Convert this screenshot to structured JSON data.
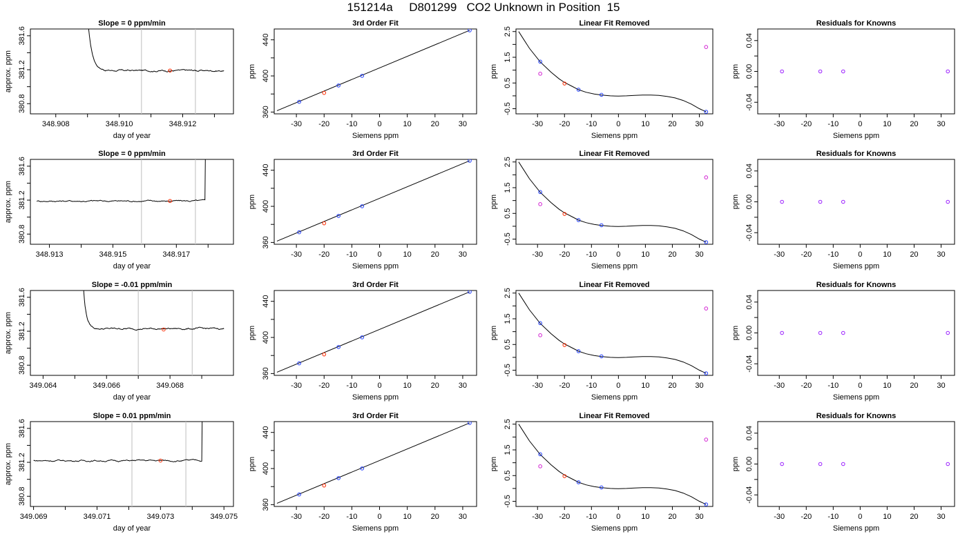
{
  "page": {
    "title": "151214a     D801299   CO2 Unknown in Position  15"
  },
  "colors": {
    "axis": "#000000",
    "line": "#000000",
    "ref_line": "#c8c8c8",
    "known": "#1f3cff",
    "sample": "#ff2a00",
    "known_purple": "#9b1fff",
    "unknown": "#d21fd2"
  },
  "chart_data": [
    {
      "type": "line",
      "row": 0,
      "title": "Slope =  0  ppm/min",
      "xlabel": "day of year",
      "ylabel": "approx. ppm",
      "xlim": [
        348.9072,
        348.9136
      ],
      "ylim": [
        380.68,
        381.68
      ],
      "x_ticks": [
        348.908,
        348.909,
        348.91,
        348.911,
        348.912,
        348.913
      ],
      "x_tick_labels": [
        "348.908",
        "",
        "348.910",
        "",
        "348.912",
        ""
      ],
      "y_ticks": [
        380.8,
        381.0,
        381.2,
        381.4,
        381.6
      ],
      "y_tick_labels": [
        "380.8",
        "",
        "381.2",
        "",
        "381.6"
      ],
      "ref_lines": [
        348.9107,
        348.9124
      ],
      "marker": {
        "x": 348.9116,
        "y": 381.19
      },
      "series_start": 348.9089,
      "series_end": 348.9133,
      "decay": {
        "start_y": 382.6,
        "baseline": 381.19,
        "tau": 0.00013,
        "noise": 0.012,
        "spike_at_end": false
      }
    },
    {
      "type": "line",
      "row": 1,
      "title": "Slope =  0  ppm/min",
      "xlabel": "day of year",
      "ylabel": "approx. ppm",
      "xlim": [
        348.9124,
        348.9188
      ],
      "ylim": [
        380.68,
        381.68
      ],
      "x_ticks": [
        348.913,
        348.914,
        348.915,
        348.916,
        348.917,
        348.918
      ],
      "x_tick_labels": [
        "348.913",
        "",
        "348.915",
        "",
        "348.917",
        ""
      ],
      "y_ticks": [
        380.8,
        381.0,
        381.2,
        381.4,
        381.6
      ],
      "y_tick_labels": [
        "380.8",
        "",
        "381.2",
        "",
        "381.6"
      ],
      "ref_lines": [
        348.9159,
        348.9176
      ],
      "marker": {
        "x": 348.9168,
        "y": 381.19
      },
      "series_start": 348.9126,
      "series_end": 348.9181,
      "decay": {
        "start_y": 381.19,
        "baseline": 381.19,
        "tau": 0.0001,
        "noise": 0.012,
        "spike_at_end": true
      }
    },
    {
      "type": "line",
      "row": 2,
      "title": "Slope =  -0.01  ppm/min",
      "xlabel": "day of year",
      "ylabel": "approx. ppm",
      "xlim": [
        349.0636,
        349.07
      ],
      "ylim": [
        380.68,
        381.68
      ],
      "x_ticks": [
        349.064,
        349.065,
        349.066,
        349.067,
        349.068,
        349.069
      ],
      "x_tick_labels": [
        "349.064",
        "",
        "349.066",
        "",
        "349.068",
        ""
      ],
      "y_ticks": [
        380.8,
        381.0,
        381.2,
        381.4,
        381.6
      ],
      "y_tick_labels": [
        "380.8",
        "",
        "381.2",
        "",
        "381.6"
      ],
      "ref_lines": [
        349.067,
        349.0687
      ],
      "marker": {
        "x": 349.0678,
        "y": 381.22
      },
      "series_start": 349.0652,
      "series_end": 349.0697,
      "decay": {
        "start_y": 382.3,
        "baseline": 381.23,
        "tau": 9e-05,
        "noise": 0.012,
        "spike_at_end": false
      }
    },
    {
      "type": "line",
      "row": 3,
      "title": "Slope =  0.01  ppm/min",
      "xlabel": "day of year",
      "ylabel": "approx. ppm",
      "xlim": [
        349.0689,
        349.0753
      ],
      "ylim": [
        380.68,
        381.68
      ],
      "x_ticks": [
        349.069,
        349.07,
        349.071,
        349.072,
        349.073,
        349.074,
        349.075
      ],
      "x_tick_labels": [
        "349.069",
        "",
        "349.071",
        "",
        "349.073",
        "",
        "349.075"
      ],
      "y_ticks": [
        380.8,
        381.0,
        381.2,
        381.4,
        381.6
      ],
      "y_tick_labels": [
        "380.8",
        "",
        "381.2",
        "",
        "381.6"
      ],
      "ref_lines": [
        349.0721,
        349.0738
      ],
      "marker": {
        "x": 349.073,
        "y": 381.22
      },
      "series_start": 349.069,
      "series_end": 349.0745,
      "decay": {
        "start_y": 381.22,
        "baseline": 381.22,
        "tau": 0.0001,
        "noise": 0.012,
        "spike_at_end": true
      }
    },
    {
      "type": "line",
      "kind": "fit",
      "title": "3rd Order Fit",
      "xlabel": "Siemens ppm",
      "ylabel": "ppm",
      "xlim": [
        -38,
        35
      ],
      "ylim": [
        358,
        452
      ],
      "x_ticks": [
        -30,
        -20,
        -10,
        0,
        10,
        20,
        30
      ],
      "x_tick_labels": [
        "-30",
        "-20",
        "-10",
        "0",
        "10",
        "20",
        "30"
      ],
      "y_ticks": [
        360,
        380,
        400,
        420,
        440
      ],
      "y_tick_labels": [
        "360",
        "",
        "400",
        "",
        "440"
      ],
      "fit_line": [
        [
          -37,
          361.5
        ],
        [
          32.5,
          450.5
        ]
      ],
      "known_points": [
        [
          -29,
          371.3
        ],
        [
          -14.8,
          389.4
        ],
        [
          -6.3,
          400.1
        ],
        [
          32.5,
          450.5
        ]
      ],
      "sample_points": [
        [
          -20,
          381.2
        ]
      ]
    },
    {
      "type": "scatter",
      "kind": "resid",
      "title": "Linear Fit Removed",
      "xlabel": "Siemens ppm",
      "ylabel": "ppm",
      "xlim": [
        -38,
        35
      ],
      "ylim": [
        -0.7,
        2.6
      ],
      "x_ticks": [
        -30,
        -20,
        -10,
        0,
        10,
        20,
        30
      ],
      "x_tick_labels": [
        "-30",
        "-20",
        "-10",
        "0",
        "10",
        "20",
        "30"
      ],
      "y_ticks": [
        -0.5,
        0.0,
        0.5,
        1.0,
        1.5,
        2.0,
        2.5
      ],
      "y_tick_labels": [
        "-0.5",
        "",
        "0.5",
        "",
        "1.5",
        "",
        "2.5"
      ],
      "curve_x": [
        -37,
        -33,
        -29,
        -25,
        -22,
        -20,
        -17,
        -14.8,
        -12,
        -9,
        -6.3,
        -3,
        0,
        3,
        6,
        9,
        12,
        15,
        18,
        21,
        24,
        27,
        30,
        32.5
      ],
      "curve_y": [
        2.5,
        1.85,
        1.32,
        0.92,
        0.66,
        0.52,
        0.36,
        0.24,
        0.14,
        0.07,
        0.03,
        0.0,
        -0.01,
        0.0,
        0.02,
        0.03,
        0.03,
        0.02,
        -0.02,
        -0.08,
        -0.18,
        -0.32,
        -0.5,
        -0.62
      ],
      "known_points": [
        [
          -29,
          1.33
        ],
        [
          -14.8,
          0.24
        ],
        [
          -6.3,
          0.04
        ],
        [
          32.5,
          -0.62
        ]
      ],
      "sample_points": [
        [
          -20,
          0.48
        ]
      ],
      "unknown_points": [
        [
          -29,
          0.86
        ],
        [
          32.5,
          1.9
        ]
      ]
    },
    {
      "type": "scatter",
      "kind": "knowns",
      "title": "Residuals for Knowns",
      "xlabel": "Siemens ppm",
      "ylabel": "ppm",
      "xlim": [
        -38,
        35
      ],
      "ylim": [
        -0.055,
        0.055
      ],
      "x_ticks": [
        -30,
        -20,
        -10,
        0,
        10,
        20,
        30
      ],
      "x_tick_labels": [
        "-30",
        "-20",
        "-10",
        "0",
        "10",
        "20",
        "30"
      ],
      "y_ticks": [
        -0.04,
        -0.02,
        0.0,
        0.02,
        0.04
      ],
      "y_tick_labels": [
        "-0.04",
        "",
        "0.00",
        "",
        "0.04"
      ],
      "known_points": [
        [
          -29,
          0.0
        ],
        [
          -14.8,
          0.0
        ],
        [
          -6.3,
          0.0
        ],
        [
          32.5,
          0.0
        ]
      ]
    }
  ]
}
